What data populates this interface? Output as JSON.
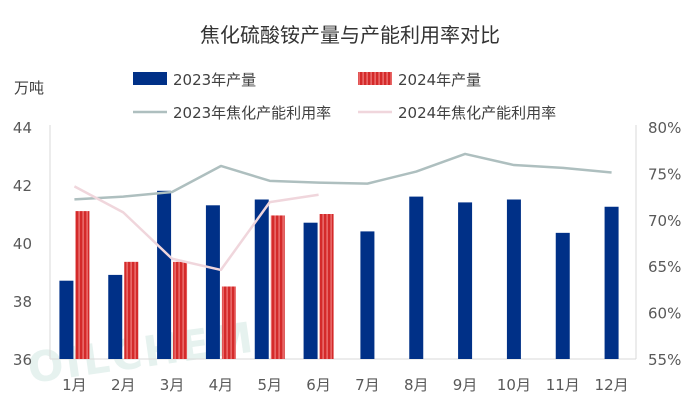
{
  "chart_data": {
    "type": "bar",
    "title": "焦化硫酸铵产量与产能利用率对比",
    "left_unit": "万吨",
    "watermark": "OILCHEM",
    "categories": [
      "1月",
      "2月",
      "3月",
      "4月",
      "5月",
      "6月",
      "7月",
      "8月",
      "9月",
      "10月",
      "11月",
      "12月"
    ],
    "y_left": {
      "min": 36,
      "max": 44,
      "ticks": [
        36,
        38,
        40,
        42,
        44
      ]
    },
    "y_right": {
      "min": 55,
      "max": 80,
      "ticks": [
        "55%",
        "60%",
        "65%",
        "70%",
        "75%",
        "80%"
      ],
      "tick_values": [
        55,
        60,
        65,
        70,
        75,
        80
      ]
    },
    "grid": false,
    "legend_position": "top",
    "series": [
      {
        "name": "2023年产量",
        "type": "bar",
        "axis": "left",
        "color": "#003087",
        "values": [
          38.7,
          38.9,
          41.8,
          41.3,
          41.5,
          40.7,
          40.4,
          41.6,
          41.4,
          41.5,
          40.35,
          41.25
        ]
      },
      {
        "name": "2024年产量",
        "type": "bar",
        "axis": "left",
        "color": "#d42a2a",
        "stripe": "#f08080",
        "values": [
          41.1,
          39.35,
          39.35,
          38.5,
          40.95,
          41.0,
          null,
          null,
          null,
          null,
          null,
          null
        ]
      },
      {
        "name": "2023年焦化产能利用率",
        "type": "line",
        "axis": "right",
        "color": "#aebfbf",
        "values": [
          72.2,
          72.5,
          73.0,
          75.8,
          74.2,
          74.0,
          73.9,
          75.2,
          77.1,
          75.9,
          75.6,
          75.1
        ]
      },
      {
        "name": "2024年焦化产能利用率",
        "type": "line",
        "axis": "right",
        "color": "#f0d6dc",
        "values": [
          73.6,
          70.8,
          65.8,
          64.6,
          71.9,
          72.7,
          null,
          null,
          null,
          null,
          null,
          null
        ]
      }
    ]
  }
}
